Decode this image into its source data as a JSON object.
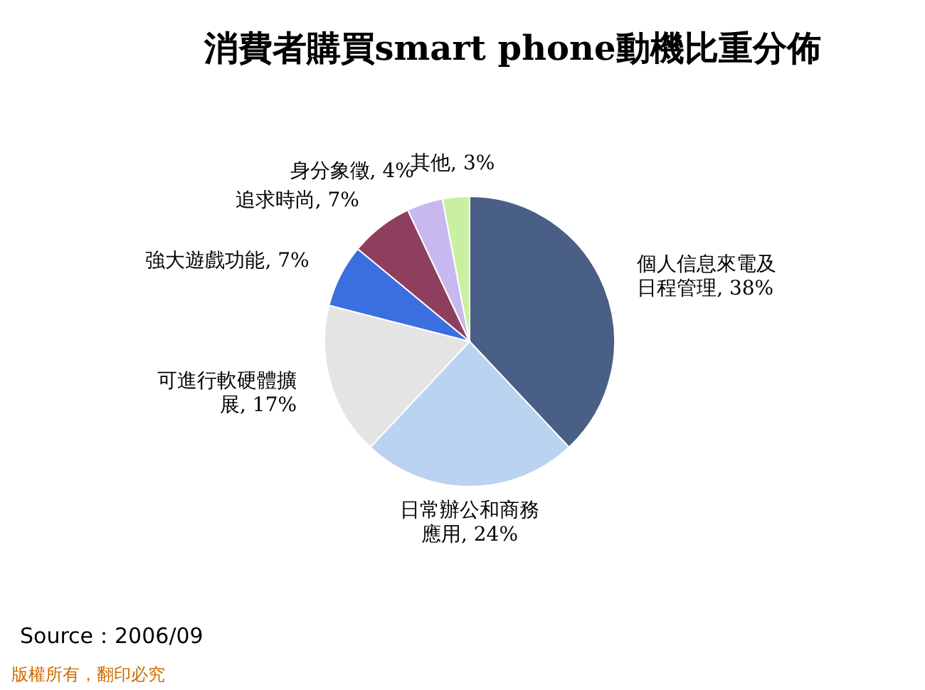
{
  "chart_data": {
    "type": "pie",
    "title": "消費者購買smart phone動機比重分佈",
    "categories": [
      "個人信息來電及日程管理",
      "日常辦公和商務應用",
      "可進行軟硬體擴展",
      "強大遊戲功能",
      "追求時尚",
      "身分象徵",
      "其他"
    ],
    "values": [
      38,
      24,
      17,
      7,
      7,
      4,
      3
    ],
    "value_labels": [
      "38%",
      "24%",
      "17%",
      "7%",
      "7%",
      "4%",
      "3%"
    ],
    "colors": [
      "#4a5f85",
      "#b9d3f0",
      "#e4e4e4",
      "#3a6fe0",
      "#8e3f5e",
      "#c8b8f0",
      "#c8f0a0"
    ],
    "annotations": [
      "Source：2006/09",
      "版權所有，翻印必究"
    ]
  }
}
